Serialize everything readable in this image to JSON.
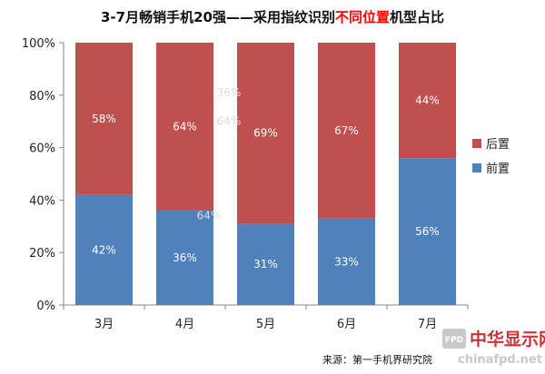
{
  "colors": {
    "front": "#4f81bd",
    "back": "#c0504d",
    "title_highlight": "#ff0000",
    "watermark_red": "#c8333a",
    "watermark_gray": "#c9c9c9"
  },
  "chart_data": {
    "type": "bar",
    "stacked": true,
    "title_parts": [
      {
        "text": "3-7月畅销手机20强——采用指纹识别",
        "highlight": false
      },
      {
        "text": "不同位置",
        "highlight": true
      },
      {
        "text": "机型占比",
        "highlight": false
      }
    ],
    "categories": [
      "3月",
      "4月",
      "5月",
      "6月",
      "7月"
    ],
    "series": [
      {
        "name": "前置",
        "values": [
          42,
          36,
          31,
          33,
          56
        ],
        "labels": [
          "42%",
          "36%",
          "31%",
          "33%",
          "56%"
        ]
      },
      {
        "name": "后置",
        "values": [
          58,
          64,
          69,
          67,
          44
        ],
        "labels": [
          "58%",
          "64%",
          "69%",
          "67%",
          "44%"
        ]
      }
    ],
    "y_ticks": [
      "0%",
      "20%",
      "40%",
      "60%",
      "80%",
      "100%"
    ],
    "ylim": [
      0,
      100
    ],
    "ghost_labels": [
      "36%",
      "64%"
    ],
    "legend_position": "right",
    "legend": [
      "后置",
      "前置"
    ],
    "grid": false
  },
  "source": "来源：第一手机界研究院",
  "watermark": {
    "badge": "FPD",
    "cn": "中华显示网",
    "en": "chinafpd.net"
  }
}
